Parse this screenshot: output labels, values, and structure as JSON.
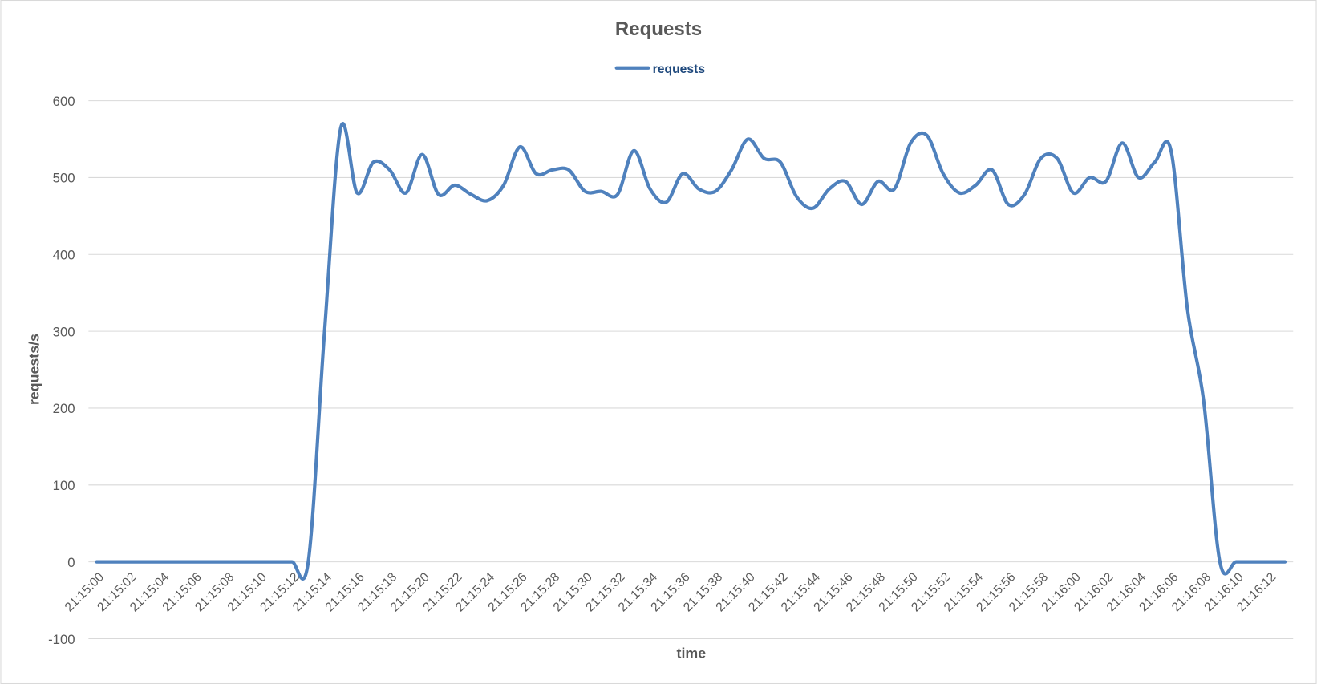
{
  "chart_data": {
    "type": "line",
    "title": "Requests",
    "x_label": "time",
    "y_label": "requests/s",
    "categories": [
      "21:15:00",
      null,
      "21:15:02",
      null,
      "21:15:04",
      null,
      "21:15:06",
      null,
      "21:15:08",
      null,
      "21:15:10",
      null,
      "21:15:12",
      null,
      "21:15:14",
      null,
      "21:15:16",
      null,
      "21:15:18",
      null,
      "21:15:20",
      null,
      "21:15:22",
      null,
      "21:15:24",
      null,
      "21:15:26",
      null,
      "21:15:28",
      null,
      "21:15:30",
      null,
      "21:15:32",
      null,
      "21:15:34",
      null,
      "21:15:36",
      null,
      "21:15:38",
      null,
      "21:15:40",
      null,
      "21:15:42",
      null,
      "21:15:44",
      null,
      "21:15:46",
      null,
      "21:15:48",
      null,
      "21:15:50",
      null,
      "21:15:52",
      null,
      "21:15:54",
      null,
      "21:15:56",
      null,
      "21:15:58",
      null,
      "21:16:00",
      null,
      "21:16:02",
      null,
      "21:16:04",
      null,
      "21:16:06",
      null,
      "21:16:08",
      null,
      "21:16:10",
      null,
      "21:16:12",
      null
    ],
    "series": [
      {
        "name": "requests",
        "color": "#4f81bd",
        "values": [
          0,
          0,
          0,
          0,
          0,
          0,
          0,
          0,
          0,
          0,
          0,
          0,
          0,
          0,
          300,
          565,
          480,
          520,
          510,
          480,
          530,
          478,
          490,
          478,
          470,
          490,
          540,
          505,
          510,
          510,
          482,
          482,
          478,
          535,
          485,
          468,
          505,
          485,
          482,
          510,
          550,
          525,
          520,
          475,
          460,
          485,
          495,
          465,
          495,
          485,
          545,
          555,
          505,
          480,
          490,
          510,
          465,
          478,
          525,
          525,
          480,
          500,
          495,
          545,
          500,
          520,
          535,
          330,
          210,
          0,
          0,
          0,
          0,
          0
        ]
      }
    ],
    "ylim": [
      -100,
      600
    ],
    "yticks": [
      -100,
      0,
      100,
      200,
      300,
      400,
      500,
      600
    ],
    "grid": true,
    "legend": "top"
  }
}
